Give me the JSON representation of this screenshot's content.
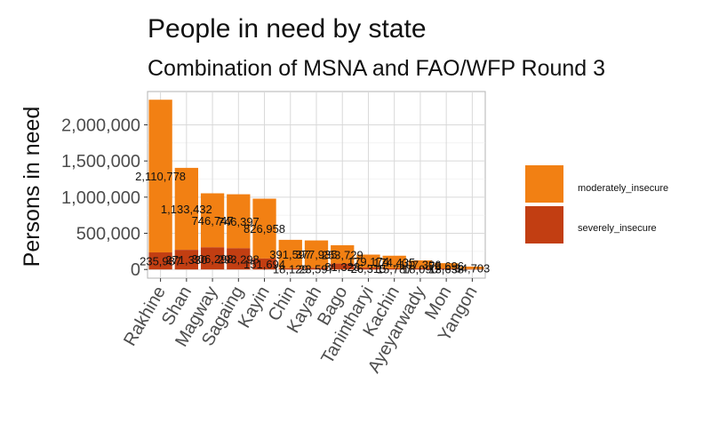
{
  "chart_data": {
    "type": "bar",
    "stacked": true,
    "title": "People in need by state",
    "subtitle": "Combination of MSNA and FAO/WFP Round 3",
    "xlabel": "",
    "ylabel": "Persons in need",
    "categories": [
      "Rakhine",
      "Shan",
      "Magway",
      "Sagaing",
      "Kayin",
      "Chin",
      "Kayah",
      "Bago",
      "Tanintharyi",
      "Kachin",
      "Ayeyarwady",
      "Mon",
      "Yangon"
    ],
    "series": [
      {
        "name": "moderately_insecure",
        "color": "#F28013",
        "values": [
          2110778,
          1133432,
          746747,
          746397,
          826958,
          391597,
          377935,
          253729,
          179174,
          174435,
          107396,
          73696,
          34703
        ],
        "labels": [
          "2,110,778",
          "1,133,432",
          "746,747",
          "746,397",
          "826,958",
          "391,597",
          "377,935",
          "253,729",
          "179,174",
          "174,435",
          "107,396",
          "73,696",
          "34,703"
        ]
      },
      {
        "name": "severely_insecure",
        "color": "#C23E12",
        "values": [
          235987,
          271330,
          306298,
          293298,
          151694,
          18129,
          23597,
          81328,
          26315,
          15787,
          18090,
          13638,
          5000
        ],
        "labels": [
          "235,987",
          "271,330",
          "306,298",
          "293,298",
          "151,694",
          "18,129",
          "23,597",
          "81,328",
          "26,315",
          "15,787",
          "18,090",
          "13,638",
          ""
        ]
      }
    ],
    "yticks": [
      "0",
      "500,000",
      "1,000,000",
      "1,500,000",
      "2,000,000"
    ],
    "ylim": [
      -120000,
      2460000
    ],
    "grid": true,
    "legend_position": "right"
  }
}
